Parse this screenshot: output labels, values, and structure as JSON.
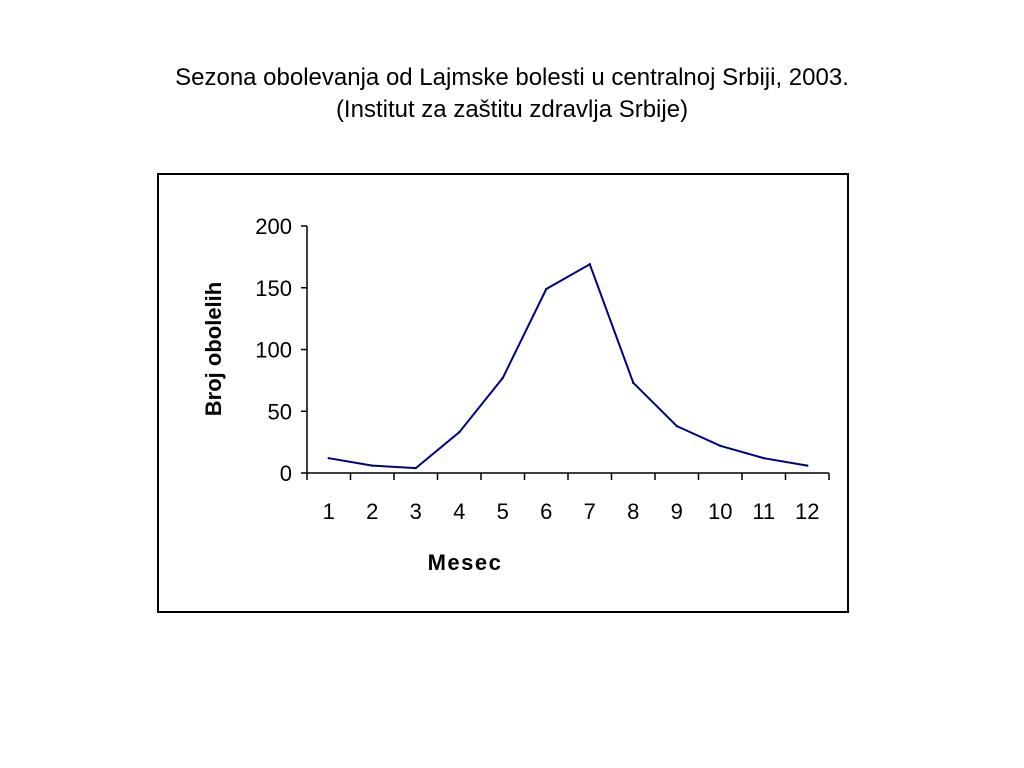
{
  "title": {
    "line1": "Sezona obolevanja od Lajmske bolesti u centralnoj Srbiji, 2003.",
    "line2": "(Institut za zaštitu zdravlja Srbije)"
  },
  "colors": {
    "line": "#000080",
    "axis": "#000000",
    "frame": "#000000"
  },
  "chart_data": {
    "type": "line",
    "xlabel": "Mesec",
    "ylabel": "Broj obolelih",
    "categories": [
      "1",
      "2",
      "3",
      "4",
      "5",
      "6",
      "7",
      "8",
      "9",
      "10",
      "11",
      "12"
    ],
    "series": [
      {
        "values": [
          12,
          6,
          4,
          33,
          77,
          149,
          169,
          73,
          38,
          22,
          12,
          6
        ]
      }
    ],
    "ylim": [
      0,
      200
    ],
    "yticks": [
      0,
      50,
      100,
      150,
      200
    ],
    "grid": false,
    "legend": "none"
  }
}
